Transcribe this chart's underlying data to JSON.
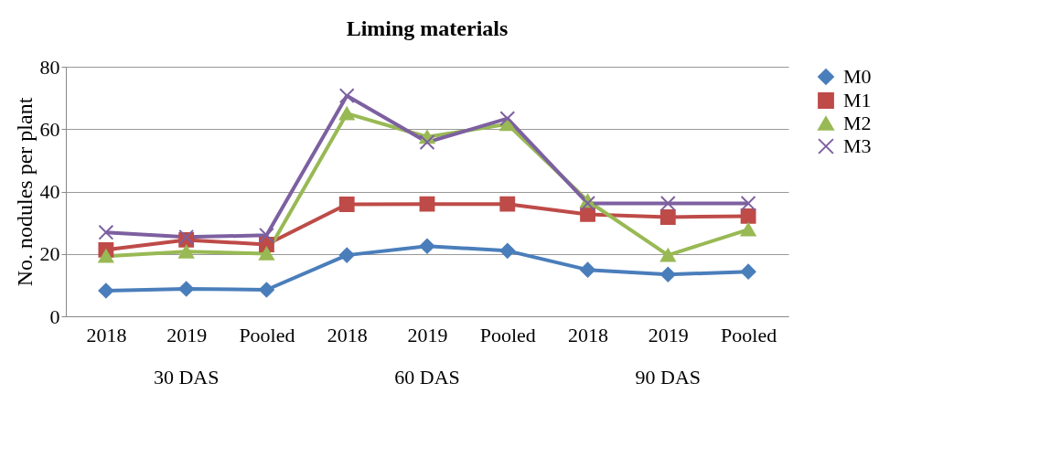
{
  "chart_data": {
    "type": "line",
    "title": "Liming materials",
    "ylabel": "No. nodules per plant",
    "categories": [
      "2018",
      "2019",
      "Pooled",
      "2018",
      "2019",
      "Pooled",
      "2018",
      "2019",
      "Pooled"
    ],
    "annotations": [
      "30 DAS",
      "60 DAS",
      "90 DAS"
    ],
    "ylim": [
      0,
      80
    ],
    "yticks": [
      0,
      20,
      40,
      60,
      80
    ],
    "grid": "y",
    "legend": "right",
    "series": [
      {
        "name": "M0",
        "color": "#4a7ebb",
        "marker": "diamond",
        "values": [
          8.2,
          8.8,
          8.5,
          19.6,
          22.5,
          21.0,
          14.9,
          13.4,
          14.3
        ]
      },
      {
        "name": "M1",
        "color": "#be4b48",
        "marker": "square",
        "values": [
          21.3,
          24.5,
          23.0,
          35.9,
          36.0,
          36.0,
          32.7,
          31.8,
          32.1
        ]
      },
      {
        "name": "M2",
        "color": "#98b954",
        "marker": "triangle",
        "values": [
          19.3,
          20.7,
          20.1,
          65.0,
          57.5,
          61.6,
          37.0,
          19.6,
          27.8
        ]
      },
      {
        "name": "M3",
        "color": "#7d60a0",
        "marker": "cross",
        "values": [
          26.9,
          25.4,
          26.0,
          70.7,
          55.8,
          63.4,
          36.2,
          36.2,
          36.2
        ]
      }
    ]
  }
}
